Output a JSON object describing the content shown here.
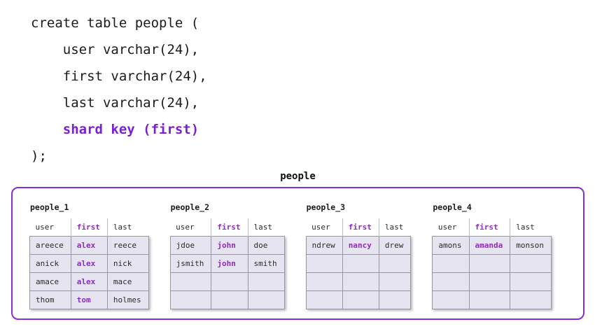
{
  "code": {
    "lines": [
      {
        "text": "create table people (",
        "highlight": false
      },
      {
        "text": "    user varchar(24),",
        "highlight": false
      },
      {
        "text": "    first varchar(24),",
        "highlight": false
      },
      {
        "text": "    last varchar(24),",
        "highlight": false
      },
      {
        "text": "    shard key (first)",
        "highlight": true
      },
      {
        "text": ");",
        "highlight": false
      }
    ]
  },
  "diagram": {
    "title": "people",
    "columns": [
      "user",
      "first",
      "last"
    ],
    "shard_key_column": "first",
    "shards": [
      {
        "name": "people_1",
        "rows": [
          [
            "areece",
            "alex",
            "reece"
          ],
          [
            "anick",
            "alex",
            "nick"
          ],
          [
            "amace",
            "alex",
            "mace"
          ],
          [
            "thom",
            "tom",
            "holmes"
          ]
        ]
      },
      {
        "name": "people_2",
        "rows": [
          [
            "jdoe",
            "john",
            "doe"
          ],
          [
            "jsmith",
            "john",
            "smith"
          ],
          [
            "",
            "",
            ""
          ],
          [
            "",
            "",
            ""
          ]
        ]
      },
      {
        "name": "people_3",
        "rows": [
          [
            "ndrew",
            "nancy",
            "drew"
          ],
          [
            "",
            "",
            ""
          ],
          [
            "",
            "",
            ""
          ],
          [
            "",
            "",
            ""
          ]
        ]
      },
      {
        "name": "people_4",
        "rows": [
          [
            "amons",
            "amanda",
            "monson"
          ],
          [
            "",
            "",
            ""
          ],
          [
            "",
            "",
            ""
          ],
          [
            "",
            "",
            ""
          ]
        ]
      }
    ]
  },
  "colors": {
    "code_keyword_purple": "#7b1fd2",
    "table_highlight_purple": "#8e2bc2",
    "container_border_purple": "#8c2bd8",
    "cell_background": "#e6e4f1",
    "grid_border": "#99969f",
    "header_separator": "#bbb9c2"
  }
}
